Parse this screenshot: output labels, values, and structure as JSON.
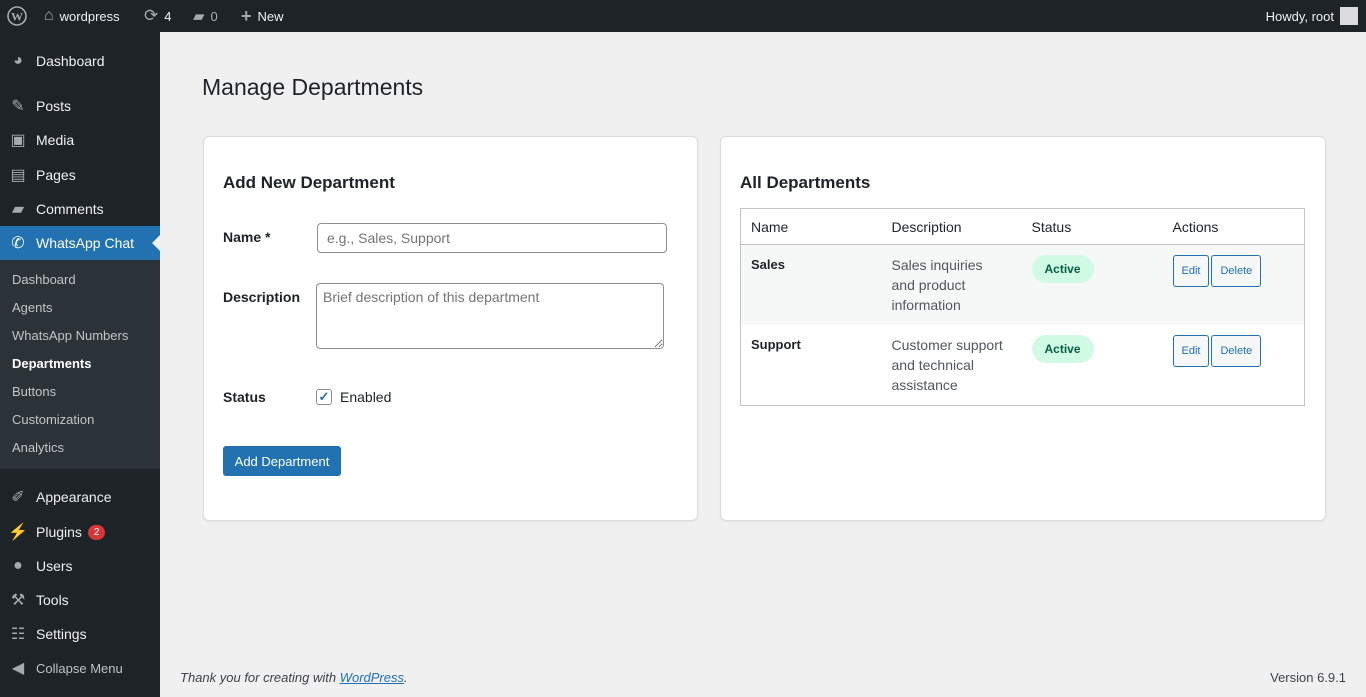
{
  "adminbar": {
    "site": "wordpress",
    "updates": "4",
    "comments": "0",
    "new": "New",
    "howdy": "Howdy, root"
  },
  "sidebar": {
    "items": [
      {
        "label": "Dashboard",
        "icon": "dashboard-icon"
      },
      {
        "label": "Posts",
        "icon": "pin-icon"
      },
      {
        "label": "Media",
        "icon": "media-icon"
      },
      {
        "label": "Pages",
        "icon": "pages-icon"
      },
      {
        "label": "Comments",
        "icon": "comment-icon"
      },
      {
        "label": "WhatsApp Chat",
        "icon": "whatsapp-icon"
      },
      {
        "label": "Appearance",
        "icon": "brush-icon"
      },
      {
        "label": "Plugins",
        "icon": "plugin-icon",
        "badge": "2"
      },
      {
        "label": "Users",
        "icon": "user-icon"
      },
      {
        "label": "Tools",
        "icon": "wrench-icon"
      },
      {
        "label": "Settings",
        "icon": "settings-icon"
      },
      {
        "label": "Collapse Menu",
        "icon": "collapse-icon"
      }
    ],
    "submenu": [
      "Dashboard",
      "Agents",
      "WhatsApp Numbers",
      "Departments",
      "Buttons",
      "Customization",
      "Analytics"
    ]
  },
  "page": {
    "title": "Manage Departments"
  },
  "form": {
    "heading": "Add New Department",
    "name_label": "Name *",
    "name_placeholder": "e.g., Sales, Support",
    "desc_label": "Description",
    "desc_placeholder": "Brief description of this department",
    "status_label": "Status",
    "enabled_label": "Enabled",
    "enabled": true,
    "submit": "Add Department"
  },
  "list": {
    "heading": "All Departments",
    "columns": [
      "Name",
      "Description",
      "Status",
      "Actions"
    ],
    "rows": [
      {
        "name": "Sales",
        "description": "Sales inquiries and product information",
        "status": "Active"
      },
      {
        "name": "Support",
        "description": "Customer support and technical assistance",
        "status": "Active"
      }
    ],
    "edit": "Edit",
    "delete": "Delete"
  },
  "footer": {
    "thanks": "Thank you for creating with ",
    "link": "WordPress",
    "period": ".",
    "version": "Version 6.9.1"
  }
}
